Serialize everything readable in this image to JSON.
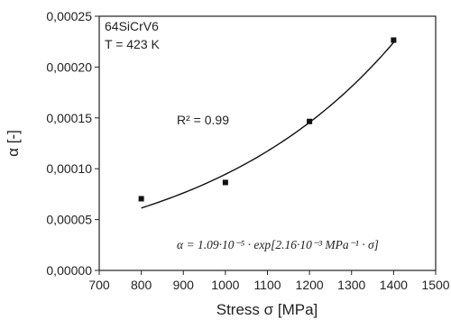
{
  "chart_data": {
    "type": "scatter",
    "xlabel": "Stress σ [MPa]",
    "ylabel": "α [-]",
    "xlim": [
      700,
      1500
    ],
    "ylim": [
      0,
      0.00025
    ],
    "x_ticks": [
      "700",
      "800",
      "900",
      "1000",
      "1100",
      "1200",
      "1300",
      "1400",
      "1500"
    ],
    "x_tick_values": [
      700,
      800,
      900,
      1000,
      1100,
      1200,
      1300,
      1400,
      1500
    ],
    "y_ticks": [
      "0,00000",
      "0,00005",
      "0,00010",
      "0,00015",
      "0,00020",
      "0,00025"
    ],
    "y_tick_values": [
      0,
      5e-05,
      0.0001,
      0.00015,
      0.0002,
      0.00025
    ],
    "grid": false,
    "series": [
      {
        "kind": "points",
        "x": [
          800,
          1000,
          1200,
          1400
        ],
        "y": [
          7.05e-05,
          8.65e-05,
          0.0001465,
          0.0002265
        ],
        "color": "#111111"
      },
      {
        "kind": "fit",
        "a": 1.09e-05,
        "b": 0.00216,
        "x_range": [
          800,
          1400
        ],
        "color": "#111111"
      }
    ],
    "annotations": {
      "material": "64SiCrV6",
      "temperature": "T = 423 K",
      "r_squared": "R² = 0.99",
      "equation": "α = 1.09·10⁻⁵ · exp[2.16·10⁻³ MPa⁻¹ · σ]"
    }
  }
}
